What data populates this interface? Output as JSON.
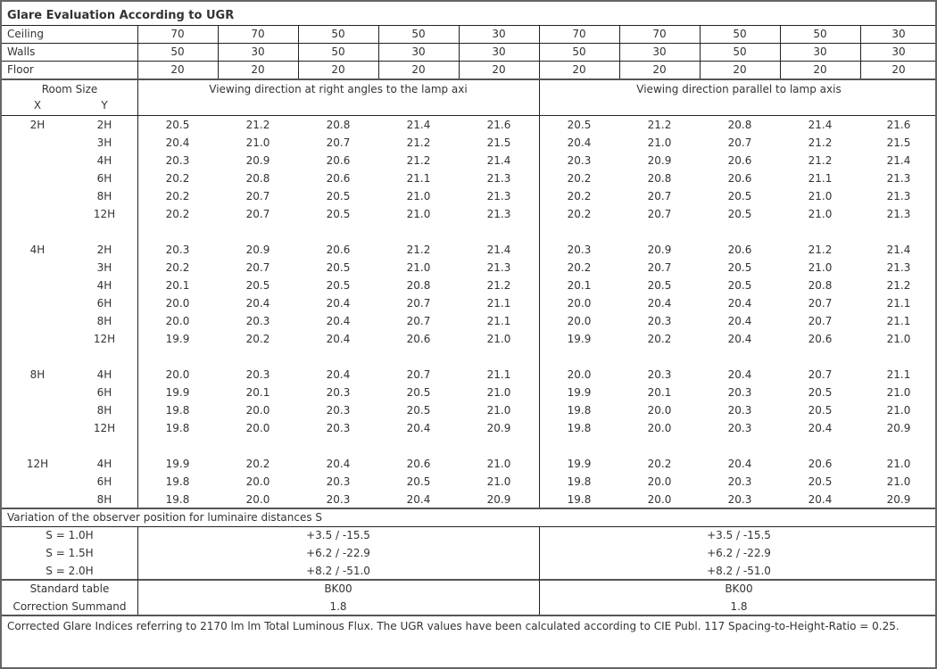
{
  "title": "Glare Evaluation According to UGR",
  "reflectances": [
    {
      "label": "Ceiling",
      "values": [
        "70",
        "70",
        "50",
        "50",
        "30",
        "70",
        "70",
        "50",
        "50",
        "30"
      ]
    },
    {
      "label": "Walls",
      "values": [
        "50",
        "30",
        "50",
        "30",
        "30",
        "50",
        "30",
        "50",
        "30",
        "30"
      ]
    },
    {
      "label": "Floor",
      "values": [
        "20",
        "20",
        "20",
        "20",
        "20",
        "20",
        "20",
        "20",
        "20",
        "20"
      ]
    }
  ],
  "room_size_label": "Room Size",
  "x_label": "X",
  "y_label": "Y",
  "direction_right_angles": "Viewing direction at right angles to the lamp axi",
  "direction_parallel": "Viewing direction parallel to lamp axis",
  "groups": [
    {
      "x": "2H",
      "rows": [
        {
          "y": "2H",
          "left": [
            "20.5",
            "21.2",
            "20.8",
            "21.4",
            "21.6"
          ],
          "right": [
            "20.5",
            "21.2",
            "20.8",
            "21.4",
            "21.6"
          ]
        },
        {
          "y": "3H",
          "left": [
            "20.4",
            "21.0",
            "20.7",
            "21.2",
            "21.5"
          ],
          "right": [
            "20.4",
            "21.0",
            "20.7",
            "21.2",
            "21.5"
          ]
        },
        {
          "y": "4H",
          "left": [
            "20.3",
            "20.9",
            "20.6",
            "21.2",
            "21.4"
          ],
          "right": [
            "20.3",
            "20.9",
            "20.6",
            "21.2",
            "21.4"
          ]
        },
        {
          "y": "6H",
          "left": [
            "20.2",
            "20.8",
            "20.6",
            "21.1",
            "21.3"
          ],
          "right": [
            "20.2",
            "20.8",
            "20.6",
            "21.1",
            "21.3"
          ]
        },
        {
          "y": "8H",
          "left": [
            "20.2",
            "20.7",
            "20.5",
            "21.0",
            "21.3"
          ],
          "right": [
            "20.2",
            "20.7",
            "20.5",
            "21.0",
            "21.3"
          ]
        },
        {
          "y": "12H",
          "left": [
            "20.2",
            "20.7",
            "20.5",
            "21.0",
            "21.3"
          ],
          "right": [
            "20.2",
            "20.7",
            "20.5",
            "21.0",
            "21.3"
          ]
        }
      ]
    },
    {
      "x": "4H",
      "rows": [
        {
          "y": "2H",
          "left": [
            "20.3",
            "20.9",
            "20.6",
            "21.2",
            "21.4"
          ],
          "right": [
            "20.3",
            "20.9",
            "20.6",
            "21.2",
            "21.4"
          ]
        },
        {
          "y": "3H",
          "left": [
            "20.2",
            "20.7",
            "20.5",
            "21.0",
            "21.3"
          ],
          "right": [
            "20.2",
            "20.7",
            "20.5",
            "21.0",
            "21.3"
          ]
        },
        {
          "y": "4H",
          "left": [
            "20.1",
            "20.5",
            "20.5",
            "20.8",
            "21.2"
          ],
          "right": [
            "20.1",
            "20.5",
            "20.5",
            "20.8",
            "21.2"
          ]
        },
        {
          "y": "6H",
          "left": [
            "20.0",
            "20.4",
            "20.4",
            "20.7",
            "21.1"
          ],
          "right": [
            "20.0",
            "20.4",
            "20.4",
            "20.7",
            "21.1"
          ]
        },
        {
          "y": "8H",
          "left": [
            "20.0",
            "20.3",
            "20.4",
            "20.7",
            "21.1"
          ],
          "right": [
            "20.0",
            "20.3",
            "20.4",
            "20.7",
            "21.1"
          ]
        },
        {
          "y": "12H",
          "left": [
            "19.9",
            "20.2",
            "20.4",
            "20.6",
            "21.0"
          ],
          "right": [
            "19.9",
            "20.2",
            "20.4",
            "20.6",
            "21.0"
          ]
        }
      ]
    },
    {
      "x": "8H",
      "rows": [
        {
          "y": "4H",
          "left": [
            "20.0",
            "20.3",
            "20.4",
            "20.7",
            "21.1"
          ],
          "right": [
            "20.0",
            "20.3",
            "20.4",
            "20.7",
            "21.1"
          ]
        },
        {
          "y": "6H",
          "left": [
            "19.9",
            "20.1",
            "20.3",
            "20.5",
            "21.0"
          ],
          "right": [
            "19.9",
            "20.1",
            "20.3",
            "20.5",
            "21.0"
          ]
        },
        {
          "y": "8H",
          "left": [
            "19.8",
            "20.0",
            "20.3",
            "20.5",
            "21.0"
          ],
          "right": [
            "19.8",
            "20.0",
            "20.3",
            "20.5",
            "21.0"
          ]
        },
        {
          "y": "12H",
          "left": [
            "19.8",
            "20.0",
            "20.3",
            "20.4",
            "20.9"
          ],
          "right": [
            "19.8",
            "20.0",
            "20.3",
            "20.4",
            "20.9"
          ]
        }
      ]
    },
    {
      "x": "12H",
      "rows": [
        {
          "y": "4H",
          "left": [
            "19.9",
            "20.2",
            "20.4",
            "20.6",
            "21.0"
          ],
          "right": [
            "19.9",
            "20.2",
            "20.4",
            "20.6",
            "21.0"
          ]
        },
        {
          "y": "6H",
          "left": [
            "19.8",
            "20.0",
            "20.3",
            "20.5",
            "21.0"
          ],
          "right": [
            "19.8",
            "20.0",
            "20.3",
            "20.5",
            "21.0"
          ]
        },
        {
          "y": "8H",
          "left": [
            "19.8",
            "20.0",
            "20.3",
            "20.4",
            "20.9"
          ],
          "right": [
            "19.8",
            "20.0",
            "20.3",
            "20.4",
            "20.9"
          ]
        }
      ]
    }
  ],
  "variation_title": "Variation of the observer position for luminaire distances S",
  "variations": [
    {
      "label": "S = 1.0H",
      "left": "+3.5 / -15.5",
      "right": "+3.5 / -15.5"
    },
    {
      "label": "S = 1.5H",
      "left": "+6.2 / -22.9",
      "right": "+6.2 / -22.9"
    },
    {
      "label": "S = 2.0H",
      "left": "+8.2 / -51.0",
      "right": "+8.2 / -51.0"
    }
  ],
  "standard_table": {
    "label": "Standard table",
    "left": "BK00",
    "right": "BK00"
  },
  "correction_summand": {
    "label": "Correction Summand",
    "left": "1.8",
    "right": "1.8"
  },
  "footnote": "Corrected Glare Indices referring to 2170 lm lm Total Luminous Flux. The UGR values have been calculated according to CIE Publ. 117    Spacing-to-Height-Ratio = 0.25."
}
